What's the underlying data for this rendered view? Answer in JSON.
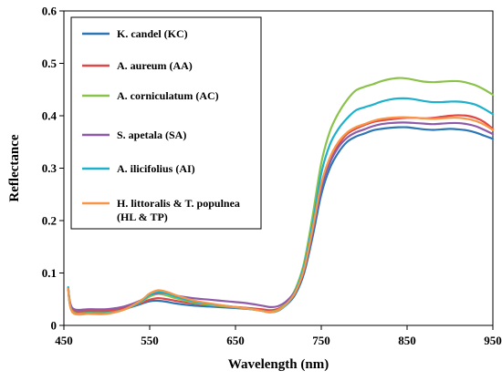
{
  "chart_data": {
    "type": "line",
    "title": "",
    "xlabel": "Wavelength (nm)",
    "ylabel": "Reflectance",
    "xlim": [
      450,
      950
    ],
    "ylim": [
      0,
      0.6
    ],
    "xticks": [
      450,
      550,
      650,
      750,
      850,
      950
    ],
    "yticks": [
      0,
      0.1,
      0.2,
      0.3,
      0.4,
      0.5,
      0.6
    ],
    "ytick_labels": [
      "0",
      "0.1",
      "0.2",
      "0.3",
      "0.4",
      "0.5",
      "0.6"
    ],
    "grid": false,
    "legend_position": "top-left",
    "x": [
      455,
      460,
      480,
      500,
      520,
      540,
      550,
      560,
      570,
      580,
      600,
      620,
      640,
      660,
      680,
      690,
      700,
      710,
      720,
      730,
      740,
      750,
      760,
      770,
      780,
      790,
      800,
      810,
      820,
      830,
      840,
      850,
      860,
      870,
      880,
      890,
      900,
      910,
      920,
      930,
      940,
      950
    ],
    "series": [
      {
        "name": "K. candel (KC)",
        "color": "#2E75B6",
        "values": [
          0.068,
          0.028,
          0.026,
          0.026,
          0.031,
          0.041,
          0.046,
          0.047,
          0.045,
          0.042,
          0.038,
          0.036,
          0.034,
          0.032,
          0.029,
          0.027,
          0.03,
          0.04,
          0.06,
          0.1,
          0.17,
          0.25,
          0.3,
          0.33,
          0.35,
          0.36,
          0.366,
          0.372,
          0.375,
          0.377,
          0.378,
          0.378,
          0.376,
          0.374,
          0.373,
          0.374,
          0.375,
          0.374,
          0.372,
          0.368,
          0.362,
          0.356
        ]
      },
      {
        "name": "A. aureum (AA)",
        "color": "#E04848",
        "values": [
          0.07,
          0.03,
          0.028,
          0.028,
          0.033,
          0.043,
          0.049,
          0.052,
          0.05,
          0.047,
          0.042,
          0.039,
          0.036,
          0.034,
          0.031,
          0.029,
          0.032,
          0.043,
          0.064,
          0.106,
          0.18,
          0.265,
          0.315,
          0.345,
          0.365,
          0.375,
          0.382,
          0.388,
          0.391,
          0.393,
          0.395,
          0.396,
          0.396,
          0.395,
          0.396,
          0.398,
          0.4,
          0.401,
          0.4,
          0.396,
          0.388,
          0.375
        ]
      },
      {
        "name": "A. corniculatum (AC)",
        "color": "#8BC34A",
        "values": [
          0.072,
          0.027,
          0.024,
          0.024,
          0.03,
          0.045,
          0.055,
          0.06,
          0.057,
          0.052,
          0.044,
          0.039,
          0.036,
          0.033,
          0.028,
          0.026,
          0.03,
          0.044,
          0.07,
          0.12,
          0.21,
          0.31,
          0.37,
          0.405,
          0.43,
          0.448,
          0.455,
          0.46,
          0.466,
          0.47,
          0.472,
          0.471,
          0.468,
          0.465,
          0.464,
          0.465,
          0.466,
          0.466,
          0.463,
          0.458,
          0.45,
          0.44
        ]
      },
      {
        "name": "S. apetala (SA)",
        "color": "#8E5BA8",
        "values": [
          0.071,
          0.033,
          0.031,
          0.031,
          0.036,
          0.048,
          0.058,
          0.062,
          0.061,
          0.057,
          0.052,
          0.049,
          0.046,
          0.043,
          0.038,
          0.035,
          0.037,
          0.047,
          0.067,
          0.108,
          0.18,
          0.262,
          0.31,
          0.34,
          0.358,
          0.368,
          0.374,
          0.38,
          0.384,
          0.386,
          0.387,
          0.387,
          0.386,
          0.385,
          0.384,
          0.385,
          0.386,
          0.386,
          0.384,
          0.38,
          0.373,
          0.365
        ]
      },
      {
        "name": "A. ilicifolius (AI)",
        "color": "#1FB1CC",
        "values": [
          0.073,
          0.026,
          0.023,
          0.023,
          0.03,
          0.046,
          0.058,
          0.064,
          0.061,
          0.055,
          0.046,
          0.041,
          0.037,
          0.033,
          0.028,
          0.025,
          0.028,
          0.041,
          0.066,
          0.114,
          0.195,
          0.29,
          0.345,
          0.375,
          0.395,
          0.41,
          0.416,
          0.421,
          0.427,
          0.431,
          0.433,
          0.433,
          0.431,
          0.428,
          0.426,
          0.426,
          0.427,
          0.427,
          0.425,
          0.421,
          0.413,
          0.403
        ]
      },
      {
        "name": "H. littoralis & T. populnea",
        "name_line2": "(HL & TP)",
        "color": "#F79646",
        "values": [
          0.07,
          0.025,
          0.022,
          0.022,
          0.03,
          0.048,
          0.061,
          0.067,
          0.064,
          0.058,
          0.048,
          0.042,
          0.037,
          0.033,
          0.028,
          0.025,
          0.029,
          0.042,
          0.064,
          0.108,
          0.185,
          0.27,
          0.32,
          0.35,
          0.368,
          0.378,
          0.384,
          0.39,
          0.394,
          0.396,
          0.397,
          0.397,
          0.396,
          0.395,
          0.394,
          0.395,
          0.396,
          0.396,
          0.394,
          0.39,
          0.383,
          0.373
        ]
      }
    ]
  }
}
